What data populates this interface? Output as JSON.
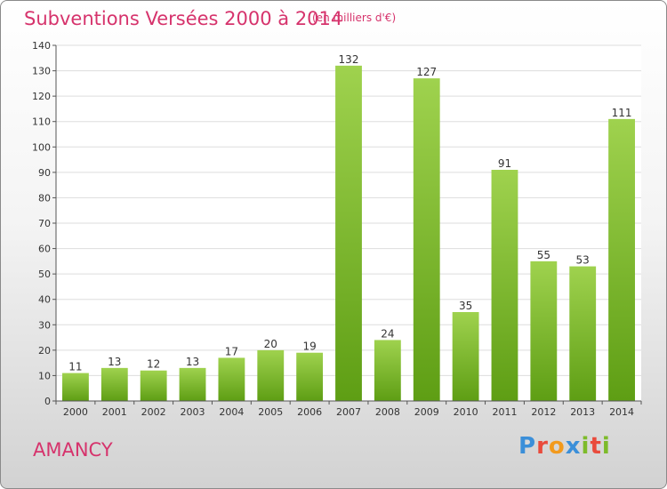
{
  "header": {
    "title": "Subventions Versées 2000 à 2014",
    "subtitle": "(en milliers d'€)"
  },
  "footer": {
    "commune": "AMANCY",
    "logo": {
      "letters": [
        "P",
        "r",
        "o",
        "x",
        "i",
        "t",
        "i"
      ],
      "colors": [
        "#3b8fd9",
        "#e94b3c",
        "#f29a1d",
        "#3b8fd9",
        "#7dbb2a",
        "#e94b3c",
        "#7dbb2a"
      ]
    }
  },
  "chart_data": {
    "type": "bar",
    "title": "Subventions Versées 2000 à 2014",
    "subtitle": "(en milliers d'€)",
    "categories": [
      "2000",
      "2001",
      "2002",
      "2003",
      "2004",
      "2005",
      "2006",
      "2007",
      "2008",
      "2009",
      "2010",
      "2011",
      "2012",
      "2013",
      "2014"
    ],
    "values": [
      11,
      13,
      12,
      13,
      17,
      20,
      19,
      132,
      24,
      127,
      35,
      91,
      55,
      53,
      111
    ],
    "ylim": [
      0,
      140
    ],
    "yticks": [
      0,
      10,
      20,
      30,
      40,
      50,
      60,
      70,
      80,
      90,
      100,
      110,
      120,
      130,
      140
    ],
    "grid": true,
    "colors": {
      "bar_light": "#9fd24e",
      "bar_dark": "#5e9e14",
      "grid": "#dddddd",
      "axis": "#555555"
    }
  }
}
